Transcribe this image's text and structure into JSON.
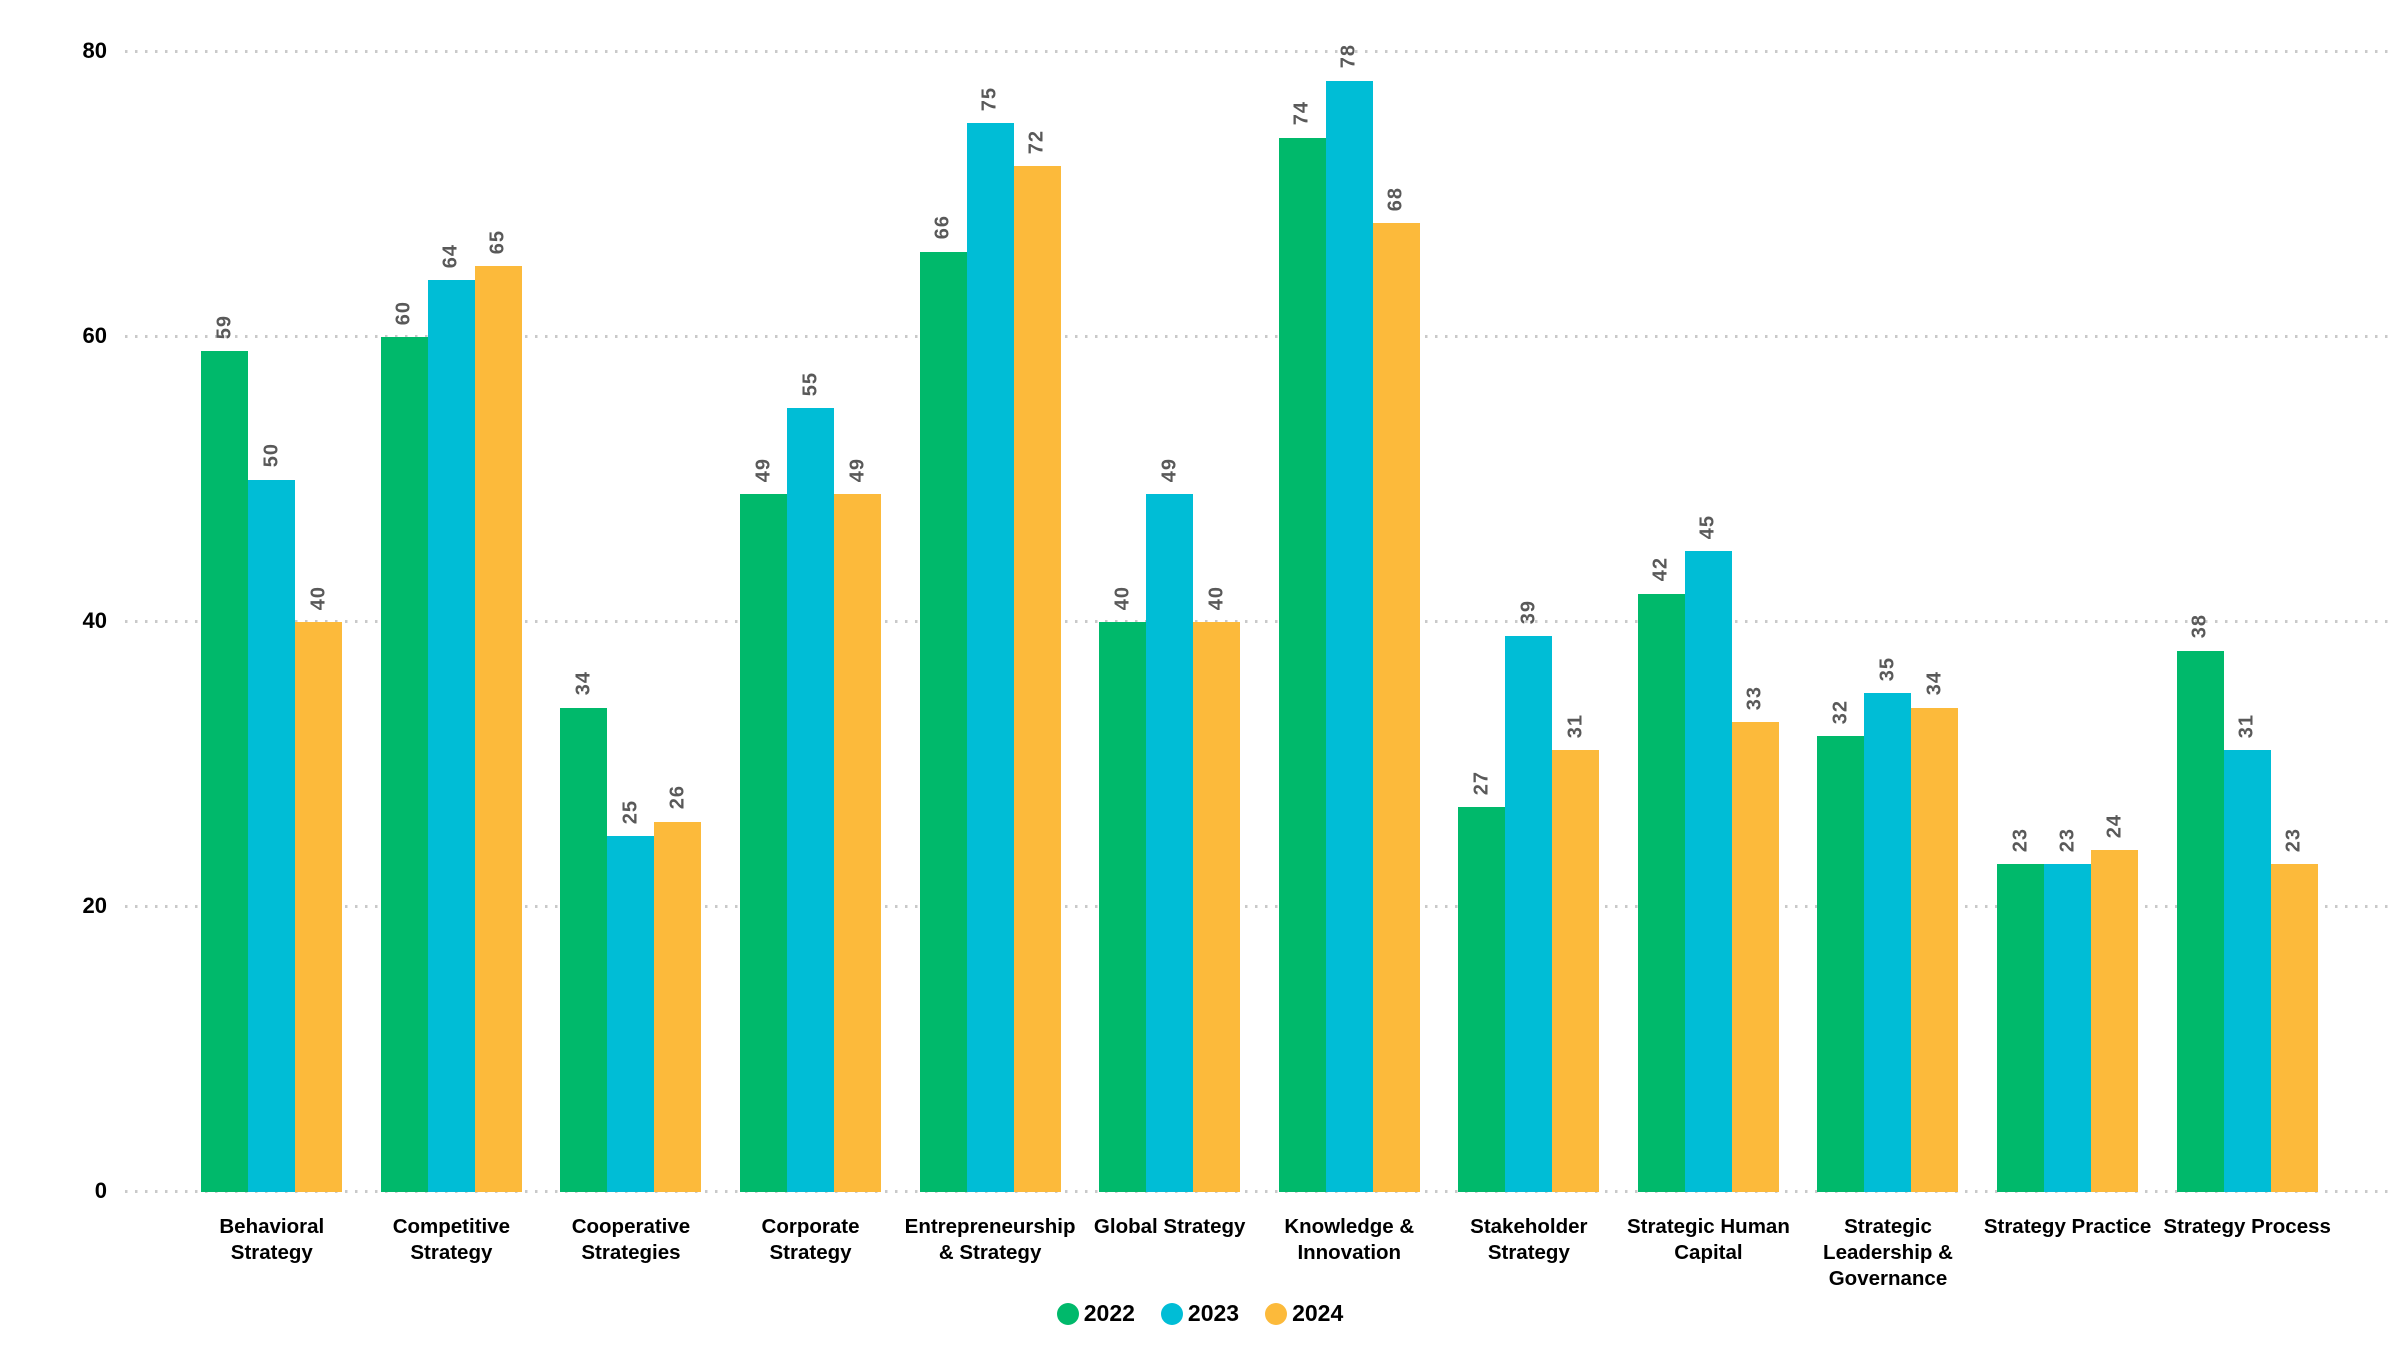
{
  "chart_data": {
    "type": "bar",
    "title": "",
    "xlabel": "",
    "ylabel": "",
    "ylim": [
      0,
      80
    ],
    "yticks": [
      0,
      20,
      40,
      60,
      80
    ],
    "grid": "horizontal dotted",
    "legend_position": "bottom-center",
    "value_labels": {
      "rotation": -90,
      "color": "#595959",
      "position": "above-bar"
    },
    "categories": [
      "Behavioral Strategy",
      "Competitive Strategy",
      "Cooperative Strategies",
      "Corporate Strategy",
      "Entrepreneurship & Strategy",
      "Global Strategy",
      "Knowledge & Innovation",
      "Stakeholder Strategy",
      "Strategic Human Capital",
      "Strategic Leadership & Governance",
      "Strategy Practice",
      "Strategy Process"
    ],
    "category_label_lines": [
      [
        "Behavioral",
        "Strategy"
      ],
      [
        "Competitive",
        "Strategy"
      ],
      [
        "Cooperative",
        "Strategies"
      ],
      [
        "Corporate",
        "Strategy"
      ],
      [
        "Entrepreneurship",
        "& Strategy"
      ],
      [
        "Global Strategy"
      ],
      [
        "Knowledge &",
        "Innovation"
      ],
      [
        "Stakeholder",
        "Strategy"
      ],
      [
        "Strategic Human",
        "Capital"
      ],
      [
        "Strategic",
        "Leadership &",
        "Governance"
      ],
      [
        "Strategy Practice"
      ],
      [
        "Strategy Process"
      ]
    ],
    "series": [
      {
        "name": "2022",
        "color": "#00b96b",
        "values": [
          59,
          60,
          34,
          49,
          66,
          40,
          74,
          27,
          42,
          32,
          23,
          38
        ]
      },
      {
        "name": "2023",
        "color": "#00bdd6",
        "values": [
          50,
          64,
          25,
          55,
          75,
          49,
          78,
          39,
          45,
          35,
          23,
          31
        ]
      },
      {
        "name": "2024",
        "color": "#fcba3b",
        "values": [
          40,
          65,
          26,
          49,
          72,
          40,
          68,
          31,
          33,
          34,
          24,
          23
        ]
      }
    ]
  },
  "style": {
    "background": "#ffffff",
    "gridline_color": "#c9c9c9",
    "value_label_color": "#595959",
    "axis_text_color": "#000000"
  }
}
